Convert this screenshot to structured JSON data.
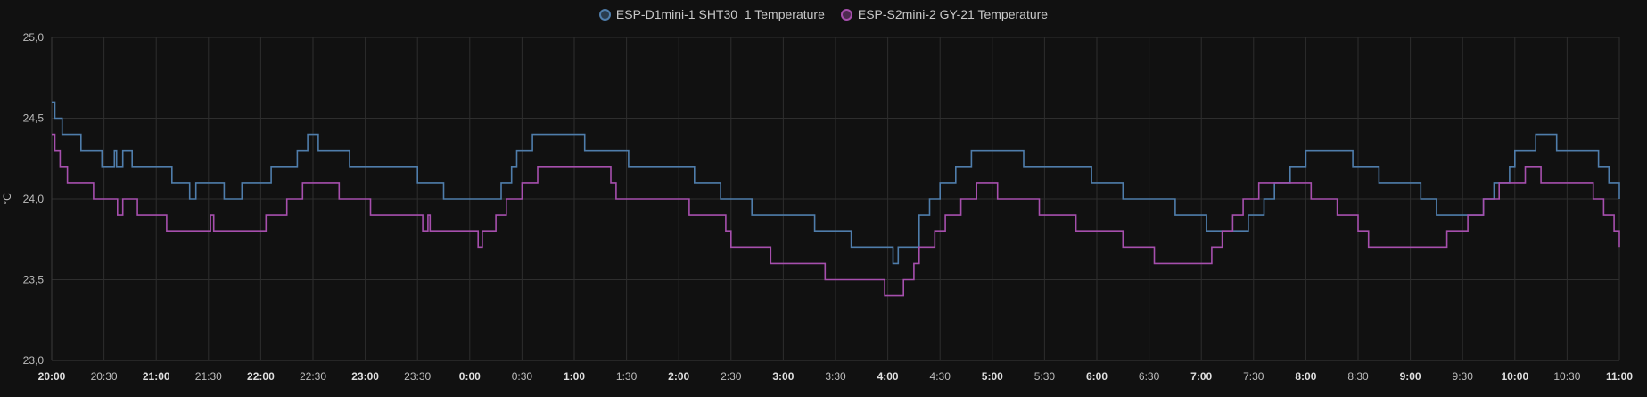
{
  "legend": {
    "series_1": "ESP-D1mini-1 SHT30_1 Temperature",
    "series_2": "ESP-S2mini-2 GY-21 Temperature"
  },
  "colors": {
    "series_1": "#4f7dab",
    "series_2": "#a64fad",
    "grid": "#2e2e2e",
    "background": "#111111"
  },
  "chart_data": {
    "type": "line",
    "step": true,
    "ylabel": "°C",
    "ylim": [
      23.0,
      25.0
    ],
    "yticks": [
      "25,0",
      "24,5",
      "24,0",
      "23,5",
      "23,0"
    ],
    "ytick_values": [
      25.0,
      24.5,
      24.0,
      23.5,
      23.0
    ],
    "xlim": [
      0,
      15
    ],
    "xticks": [
      {
        "t": 0,
        "label": "20:00",
        "major": true
      },
      {
        "t": 0.5,
        "label": "20:30",
        "major": false
      },
      {
        "t": 1,
        "label": "21:00",
        "major": true
      },
      {
        "t": 1.5,
        "label": "21:30",
        "major": false
      },
      {
        "t": 2,
        "label": "22:00",
        "major": true
      },
      {
        "t": 2.5,
        "label": "22:30",
        "major": false
      },
      {
        "t": 3,
        "label": "23:00",
        "major": true
      },
      {
        "t": 3.5,
        "label": "23:30",
        "major": false
      },
      {
        "t": 4,
        "label": "0:00",
        "major": true
      },
      {
        "t": 4.5,
        "label": "0:30",
        "major": false
      },
      {
        "t": 5,
        "label": "1:00",
        "major": true
      },
      {
        "t": 5.5,
        "label": "1:30",
        "major": false
      },
      {
        "t": 6,
        "label": "2:00",
        "major": true
      },
      {
        "t": 6.5,
        "label": "2:30",
        "major": false
      },
      {
        "t": 7,
        "label": "3:00",
        "major": true
      },
      {
        "t": 7.5,
        "label": "3:30",
        "major": false
      },
      {
        "t": 8,
        "label": "4:00",
        "major": true
      },
      {
        "t": 8.5,
        "label": "4:30",
        "major": false
      },
      {
        "t": 9,
        "label": "5:00",
        "major": true
      },
      {
        "t": 9.5,
        "label": "5:30",
        "major": false
      },
      {
        "t": 10,
        "label": "6:00",
        "major": true
      },
      {
        "t": 10.5,
        "label": "6:30",
        "major": false
      },
      {
        "t": 11,
        "label": "7:00",
        "major": true
      },
      {
        "t": 11.5,
        "label": "7:30",
        "major": false
      },
      {
        "t": 12,
        "label": "8:00",
        "major": true
      },
      {
        "t": 12.5,
        "label": "8:30",
        "major": false
      },
      {
        "t": 13,
        "label": "9:00",
        "major": true
      },
      {
        "t": 13.5,
        "label": "9:30",
        "major": false
      },
      {
        "t": 14,
        "label": "10:00",
        "major": true
      },
      {
        "t": 14.5,
        "label": "10:30",
        "major": false
      },
      {
        "t": 15,
        "label": "11:00",
        "major": true
      }
    ],
    "series": [
      {
        "name": "ESP-D1mini-1 SHT30_1 Temperature",
        "points": [
          [
            0.0,
            24.6
          ],
          [
            0.03,
            24.5
          ],
          [
            0.1,
            24.4
          ],
          [
            0.28,
            24.3
          ],
          [
            0.48,
            24.2
          ],
          [
            0.6,
            24.3
          ],
          [
            0.62,
            24.2
          ],
          [
            0.68,
            24.3
          ],
          [
            0.77,
            24.2
          ],
          [
            0.95,
            24.2
          ],
          [
            1.0,
            24.2
          ],
          [
            1.15,
            24.1
          ],
          [
            1.3,
            24.1
          ],
          [
            1.32,
            24.0
          ],
          [
            1.38,
            24.1
          ],
          [
            1.5,
            24.1
          ],
          [
            1.65,
            24.0
          ],
          [
            1.82,
            24.1
          ],
          [
            1.95,
            24.1
          ],
          [
            2.1,
            24.2
          ],
          [
            2.35,
            24.3
          ],
          [
            2.45,
            24.4
          ],
          [
            2.55,
            24.3
          ],
          [
            2.8,
            24.3
          ],
          [
            2.85,
            24.2
          ],
          [
            3.2,
            24.2
          ],
          [
            3.35,
            24.2
          ],
          [
            3.5,
            24.1
          ],
          [
            3.75,
            24.0
          ],
          [
            4.0,
            24.0
          ],
          [
            4.2,
            24.0
          ],
          [
            4.3,
            24.1
          ],
          [
            4.4,
            24.2
          ],
          [
            4.45,
            24.3
          ],
          [
            4.6,
            24.4
          ],
          [
            4.95,
            24.4
          ],
          [
            5.1,
            24.3
          ],
          [
            5.5,
            24.3
          ],
          [
            5.52,
            24.2
          ],
          [
            5.85,
            24.2
          ],
          [
            6.15,
            24.1
          ],
          [
            6.4,
            24.0
          ],
          [
            6.65,
            24.0
          ],
          [
            6.7,
            23.9
          ],
          [
            7.2,
            23.9
          ],
          [
            7.3,
            23.8
          ],
          [
            7.6,
            23.8
          ],
          [
            7.65,
            23.7
          ],
          [
            8.0,
            23.7
          ],
          [
            8.05,
            23.6
          ],
          [
            8.1,
            23.7
          ],
          [
            8.3,
            23.9
          ],
          [
            8.4,
            24.0
          ],
          [
            8.5,
            24.1
          ],
          [
            8.65,
            24.2
          ],
          [
            8.8,
            24.3
          ],
          [
            9.1,
            24.3
          ],
          [
            9.3,
            24.2
          ],
          [
            9.75,
            24.2
          ],
          [
            9.95,
            24.1
          ],
          [
            10.25,
            24.0
          ],
          [
            10.5,
            24.0
          ],
          [
            10.75,
            23.9
          ],
          [
            11.0,
            23.9
          ],
          [
            11.05,
            23.8
          ],
          [
            11.3,
            23.8
          ],
          [
            11.45,
            23.9
          ],
          [
            11.6,
            24.0
          ],
          [
            11.7,
            24.1
          ],
          [
            11.85,
            24.2
          ],
          [
            12.0,
            24.3
          ],
          [
            12.4,
            24.3
          ],
          [
            12.45,
            24.2
          ],
          [
            12.6,
            24.2
          ],
          [
            12.7,
            24.1
          ],
          [
            12.95,
            24.1
          ],
          [
            13.1,
            24.0
          ],
          [
            13.25,
            23.9
          ],
          [
            13.5,
            23.9
          ],
          [
            13.7,
            24.0
          ],
          [
            13.8,
            24.1
          ],
          [
            13.95,
            24.2
          ],
          [
            14.0,
            24.3
          ],
          [
            14.2,
            24.4
          ],
          [
            14.4,
            24.3
          ],
          [
            14.65,
            24.3
          ],
          [
            14.8,
            24.2
          ],
          [
            14.9,
            24.1
          ],
          [
            15.0,
            24.0
          ]
        ]
      },
      {
        "name": "ESP-S2mini-2 GY-21 Temperature",
        "points": [
          [
            0.0,
            24.4
          ],
          [
            0.03,
            24.3
          ],
          [
            0.08,
            24.2
          ],
          [
            0.15,
            24.1
          ],
          [
            0.4,
            24.0
          ],
          [
            0.63,
            23.9
          ],
          [
            0.68,
            24.0
          ],
          [
            0.75,
            24.0
          ],
          [
            0.82,
            23.9
          ],
          [
            1.1,
            23.8
          ],
          [
            1.5,
            23.8
          ],
          [
            1.52,
            23.9
          ],
          [
            1.55,
            23.8
          ],
          [
            2.0,
            23.8
          ],
          [
            2.05,
            23.9
          ],
          [
            2.25,
            24.0
          ],
          [
            2.4,
            24.1
          ],
          [
            2.7,
            24.1
          ],
          [
            2.75,
            24.0
          ],
          [
            3.05,
            23.9
          ],
          [
            3.55,
            23.8
          ],
          [
            3.6,
            23.9
          ],
          [
            3.62,
            23.8
          ],
          [
            4.05,
            23.8
          ],
          [
            4.08,
            23.7
          ],
          [
            4.12,
            23.8
          ],
          [
            4.25,
            23.9
          ],
          [
            4.35,
            24.0
          ],
          [
            4.5,
            24.1
          ],
          [
            4.65,
            24.2
          ],
          [
            4.95,
            24.2
          ],
          [
            5.35,
            24.1
          ],
          [
            5.4,
            24.0
          ],
          [
            6.0,
            24.0
          ],
          [
            6.1,
            23.9
          ],
          [
            6.1,
            23.9
          ],
          [
            6.45,
            23.8
          ],
          [
            6.5,
            23.7
          ],
          [
            6.85,
            23.7
          ],
          [
            6.88,
            23.6
          ],
          [
            7.35,
            23.6
          ],
          [
            7.4,
            23.5
          ],
          [
            7.95,
            23.5
          ],
          [
            7.97,
            23.4
          ],
          [
            8.1,
            23.4
          ],
          [
            8.15,
            23.5
          ],
          [
            8.25,
            23.6
          ],
          [
            8.3,
            23.7
          ],
          [
            8.45,
            23.8
          ],
          [
            8.55,
            23.9
          ],
          [
            8.7,
            24.0
          ],
          [
            8.85,
            24.1
          ],
          [
            9.05,
            24.0
          ],
          [
            9.4,
            24.0
          ],
          [
            9.45,
            23.9
          ],
          [
            9.75,
            23.9
          ],
          [
            9.8,
            23.8
          ],
          [
            10.2,
            23.8
          ],
          [
            10.25,
            23.7
          ],
          [
            10.5,
            23.7
          ],
          [
            10.55,
            23.6
          ],
          [
            11.05,
            23.6
          ],
          [
            11.1,
            23.7
          ],
          [
            11.2,
            23.8
          ],
          [
            11.3,
            23.9
          ],
          [
            11.4,
            24.0
          ],
          [
            11.55,
            24.1
          ],
          [
            12.0,
            24.1
          ],
          [
            12.05,
            24.0
          ],
          [
            12.25,
            24.0
          ],
          [
            12.3,
            23.9
          ],
          [
            12.5,
            23.8
          ],
          [
            12.6,
            23.7
          ],
          [
            13.3,
            23.7
          ],
          [
            13.35,
            23.8
          ],
          [
            13.55,
            23.9
          ],
          [
            13.7,
            24.0
          ],
          [
            13.85,
            24.1
          ],
          [
            14.0,
            24.1
          ],
          [
            14.1,
            24.2
          ],
          [
            14.2,
            24.2
          ],
          [
            14.25,
            24.1
          ],
          [
            14.6,
            24.1
          ],
          [
            14.75,
            24.0
          ],
          [
            14.85,
            23.9
          ],
          [
            14.95,
            23.8
          ],
          [
            15.0,
            23.7
          ]
        ]
      }
    ]
  }
}
